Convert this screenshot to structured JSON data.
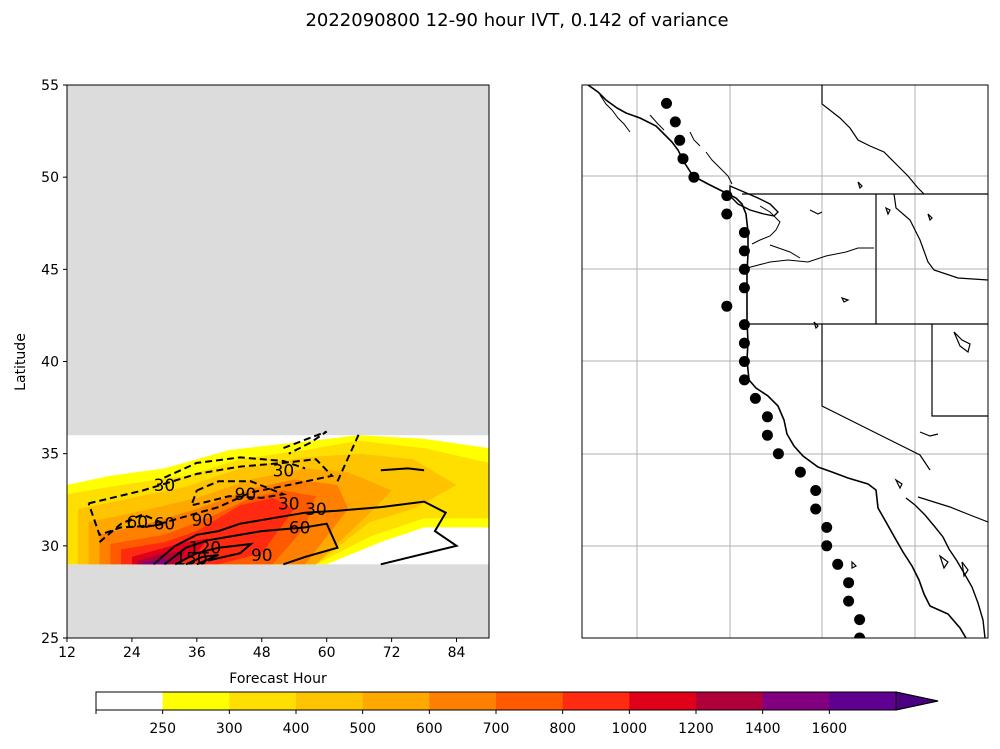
{
  "chart_data": [
    {
      "type": "contour",
      "title": "2022090800 12-90 hour IVT, 0.142 of variance",
      "xlabel": "Forecast Hour",
      "ylabel": "Latitude",
      "xlim": [
        12,
        90
      ],
      "ylim": [
        25,
        55
      ],
      "xticks": [
        12,
        24,
        36,
        48,
        60,
        72,
        84
      ],
      "yticks": [
        25,
        30,
        35,
        40,
        45,
        50,
        55
      ],
      "data_lat_range": [
        29,
        36
      ],
      "missing_color": "#dcdcdc",
      "filled_ivt_levels": [
        {
          "level": 250,
          "color": "#ffff00",
          "region": [
            [
              12,
              33.3
            ],
            [
              20,
              33.8
            ],
            [
              30,
              34.2
            ],
            [
              42,
              35.2
            ],
            [
              54,
              35.6
            ],
            [
              66,
              36
            ],
            [
              78,
              35.8
            ],
            [
              90,
              35.3
            ],
            [
              90,
              31
            ],
            [
              78,
              31
            ],
            [
              70,
              30.2
            ],
            [
              60,
              29
            ],
            [
              12,
              29
            ]
          ]
        },
        {
          "level": 300,
          "color": "#ffdf00",
          "region": [
            [
              12,
              32.8
            ],
            [
              22,
              33.3
            ],
            [
              34,
              33.8
            ],
            [
              44,
              34.7
            ],
            [
              56,
              35.2
            ],
            [
              66,
              35.7
            ],
            [
              78,
              35.3
            ],
            [
              90,
              34.5
            ],
            [
              90,
              31.5
            ],
            [
              78,
              31.5
            ],
            [
              68,
              30.5
            ],
            [
              58,
              29
            ],
            [
              12,
              29
            ]
          ]
        },
        {
          "level": 400,
          "color": "#ffc400",
          "region": [
            [
              14,
              32
            ],
            [
              24,
              32.6
            ],
            [
              34,
              33.2
            ],
            [
              44,
              34.2
            ],
            [
              56,
              34.8
            ],
            [
              66,
              35
            ],
            [
              76,
              34.7
            ],
            [
              84,
              33.3
            ],
            [
              76,
              32
            ],
            [
              68,
              31.3
            ],
            [
              58,
              29
            ],
            [
              14,
              29
            ]
          ]
        },
        {
          "level": 500,
          "color": "#ffa800",
          "region": [
            [
              16,
              31.3
            ],
            [
              26,
              31.9
            ],
            [
              36,
              32.6
            ],
            [
              46,
              33.6
            ],
            [
              56,
              34.2
            ],
            [
              64,
              34
            ],
            [
              72,
              33
            ],
            [
              68,
              31.8
            ],
            [
              58,
              29
            ],
            [
              16,
              29
            ]
          ]
        },
        {
          "level": 600,
          "color": "#ff8000",
          "region": [
            [
              18,
              30.6
            ],
            [
              28,
              31.3
            ],
            [
              36,
              32
            ],
            [
              46,
              33.1
            ],
            [
              54,
              33.6
            ],
            [
              62,
              33.3
            ],
            [
              64,
              32
            ],
            [
              56,
              29
            ],
            [
              18,
              29
            ]
          ]
        },
        {
          "level": 700,
          "color": "#ff5a00",
          "region": [
            [
              20,
              30.1
            ],
            [
              30,
              30.6
            ],
            [
              38,
              31.5
            ],
            [
              46,
              32.6
            ],
            [
              52,
              33
            ],
            [
              58,
              32.7
            ],
            [
              56,
              31
            ],
            [
              50,
              29
            ],
            [
              20,
              29
            ]
          ]
        },
        {
          "level": 800,
          "color": "#ff2a10",
          "region": [
            [
              22,
              29.8
            ],
            [
              30,
              30.2
            ],
            [
              36,
              30.8
            ],
            [
              44,
              32.2
            ],
            [
              50,
              32.6
            ],
            [
              54,
              32
            ],
            [
              48,
              29.6
            ],
            [
              40,
              29
            ],
            [
              22,
              29
            ]
          ]
        },
        {
          "level": 1000,
          "color": "#e0001a",
          "region": [
            [
              24,
              29.4
            ],
            [
              30,
              29.9
            ],
            [
              34,
              30.2
            ],
            [
              38,
              30.4
            ],
            [
              36,
              29.6
            ],
            [
              32,
              29
            ],
            [
              24,
              29
            ]
          ]
        },
        {
          "level": 1200,
          "color": "#b0003a",
          "region": [
            [
              25,
              29.2
            ],
            [
              30,
              29.6
            ],
            [
              34,
              29.7
            ],
            [
              32,
              29
            ],
            [
              25,
              29
            ]
          ]
        },
        {
          "level": 1400,
          "color": "#800080",
          "region": [
            [
              26,
              29.1
            ],
            [
              30,
              29.3
            ],
            [
              31,
              29
            ],
            [
              26,
              29
            ]
          ]
        }
      ],
      "contour_labels": [
        {
          "text": "30",
          "x": 30,
          "y": 33.3
        },
        {
          "text": "90",
          "x": 45,
          "y": 32.8
        },
        {
          "text": "30",
          "x": 52,
          "y": 34.1
        },
        {
          "text": "60",
          "x": 25,
          "y": 31.3
        },
        {
          "text": "60",
          "x": 30,
          "y": 31.2
        },
        {
          "text": "90",
          "x": 37,
          "y": 31.4
        },
        {
          "text": "30",
          "x": 53,
          "y": 32.3
        },
        {
          "text": "30",
          "x": 58,
          "y": 32.0
        },
        {
          "text": "60",
          "x": 55,
          "y": 31.0
        },
        {
          "text": "120",
          "x": 37.5,
          "y": 29.9
        },
        {
          "text": "150",
          "x": 35,
          "y": 29.3
        },
        {
          "text": "90",
          "x": 48,
          "y": 29.5
        }
      ]
    },
    {
      "type": "map",
      "region": "US West Coast / Baja California",
      "lon_range": [
        -141,
        -104
      ],
      "lat_range": [
        25,
        55
      ],
      "points_lat": [
        54,
        53,
        52,
        51,
        50,
        49,
        48,
        47,
        46,
        45,
        44,
        43,
        42,
        41,
        40,
        39,
        38,
        37,
        36,
        35,
        34,
        33,
        32,
        31,
        30,
        29,
        28,
        27,
        26,
        25
      ],
      "points_lon": [
        -133.3,
        -132.5,
        -132.1,
        -131.8,
        -130.8,
        -127.8,
        -127.8,
        -126.2,
        -126.2,
        -126.2,
        -126.2,
        -127.8,
        -126.2,
        -126.2,
        -126.2,
        -126.2,
        -125.2,
        -124.1,
        -124.1,
        -123.1,
        -121.1,
        -119.7,
        -119.7,
        -118.7,
        -118.7,
        -117.7,
        -116.7,
        -116.7,
        -115.7,
        -115.7
      ]
    }
  ],
  "colorbar": {
    "ticks": [
      "250",
      "300",
      "400",
      "500",
      "600",
      "700",
      "800",
      "1000",
      "1200",
      "1400",
      "1600"
    ],
    "colors": [
      "#ffffff",
      "#ffff00",
      "#ffdf00",
      "#ffc400",
      "#ffa800",
      "#ff8000",
      "#ff5a00",
      "#ff2a10",
      "#e0001a",
      "#b0003a",
      "#800080",
      "#600090",
      "#4b0082"
    ]
  }
}
